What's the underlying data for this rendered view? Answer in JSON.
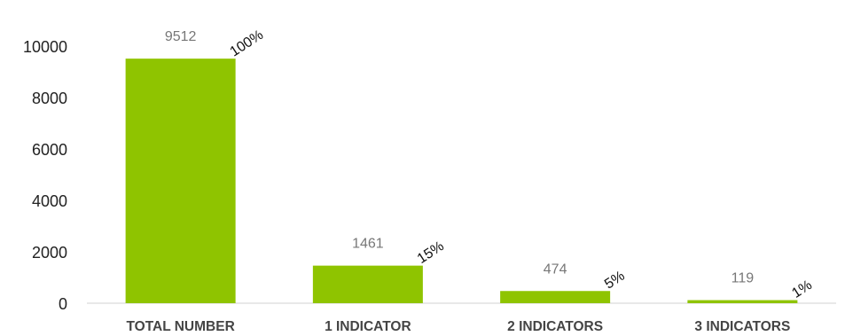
{
  "chart_data": {
    "type": "bar",
    "categories": [
      "TOTAL NUMBER",
      "1 INDICATOR",
      "2 INDICATORS",
      "3 INDICATORS"
    ],
    "values": [
      9512,
      1461,
      474,
      119
    ],
    "percent_labels": [
      "100%",
      "15%",
      "5%",
      "1%"
    ],
    "y_ticks": [
      "0",
      "2000",
      "4000",
      "6000",
      "8000",
      "10000"
    ],
    "ylim": [
      0,
      10000
    ],
    "grid": false,
    "legend": "none",
    "bar_color": "#8fc400"
  }
}
